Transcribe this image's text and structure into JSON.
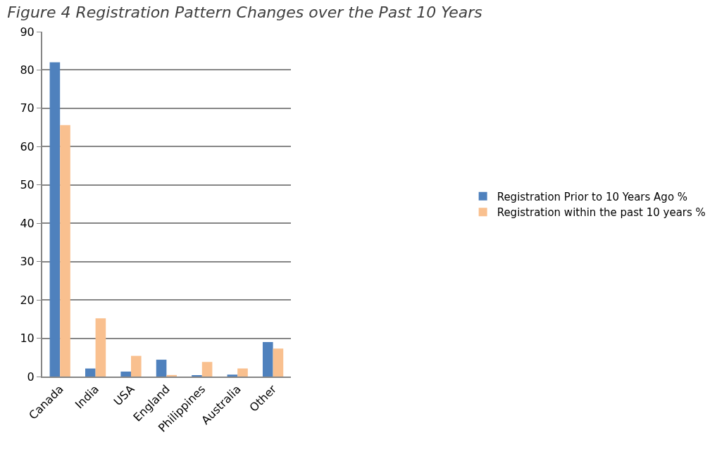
{
  "chart_data": {
    "type": "bar",
    "title": "Figure 4 Registration Pattern Changes over the Past 10 Years",
    "categories": [
      "Canada",
      "India",
      "USA",
      "England",
      "Philippines",
      "Australia",
      "Other"
    ],
    "series": [
      {
        "name": "Registration Prior to 10 Years Ago %",
        "color": "#4f81bd",
        "values": [
          82.0,
          2.1,
          1.3,
          4.4,
          0.2,
          0.5,
          9.0
        ]
      },
      {
        "name": "Registration within the past 10 years %",
        "color": "#f9c08f",
        "values": [
          65.6,
          15.2,
          5.4,
          0.4,
          3.8,
          2.1,
          7.3
        ]
      }
    ],
    "ylim": [
      0,
      90
    ],
    "yticks": [
      0,
      10,
      20,
      30,
      40,
      50,
      60,
      70,
      80,
      90
    ],
    "grid": "y",
    "legend": "right"
  }
}
